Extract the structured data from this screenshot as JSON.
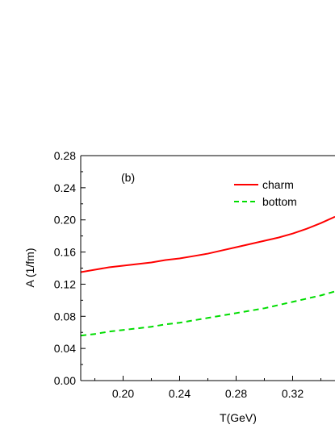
{
  "chart_data": {
    "type": "line",
    "panel_label": "(b)",
    "xlabel": "T(GeV)",
    "ylabel": "A (1/fm)",
    "xlim": [
      0.17,
      0.35
    ],
    "ylim": [
      0.0,
      0.28
    ],
    "x_ticks": [
      0.2,
      0.24,
      0.28,
      0.32
    ],
    "x_tick_labels": [
      "0.20",
      "0.24",
      "0.28",
      "0.32"
    ],
    "y_ticks": [
      0.0,
      0.04,
      0.08,
      0.12,
      0.16,
      0.2,
      0.24,
      0.28
    ],
    "y_tick_labels": [
      "0.00",
      "0.04",
      "0.08",
      "0.12",
      "0.16",
      "0.20",
      "0.24",
      "0.28"
    ],
    "legend_position": "top-right",
    "series": [
      {
        "name": "charm",
        "color": "#ff0000",
        "style": "solid",
        "x": [
          0.17,
          0.18,
          0.19,
          0.2,
          0.21,
          0.22,
          0.23,
          0.24,
          0.25,
          0.26,
          0.27,
          0.28,
          0.29,
          0.3,
          0.31,
          0.32,
          0.33,
          0.34,
          0.35
        ],
        "y": [
          0.135,
          0.138,
          0.141,
          0.143,
          0.145,
          0.147,
          0.15,
          0.152,
          0.155,
          0.158,
          0.162,
          0.166,
          0.17,
          0.174,
          0.178,
          0.183,
          0.189,
          0.196,
          0.204
        ]
      },
      {
        "name": "bottom",
        "color": "#00dd00",
        "style": "dashed",
        "x": [
          0.17,
          0.18,
          0.19,
          0.2,
          0.21,
          0.22,
          0.23,
          0.24,
          0.25,
          0.26,
          0.27,
          0.28,
          0.29,
          0.3,
          0.31,
          0.32,
          0.33,
          0.34,
          0.35
        ],
        "y": [
          0.056,
          0.058,
          0.061,
          0.063,
          0.065,
          0.067,
          0.07,
          0.072,
          0.075,
          0.078,
          0.081,
          0.084,
          0.087,
          0.09,
          0.094,
          0.098,
          0.102,
          0.106,
          0.111
        ]
      }
    ]
  }
}
